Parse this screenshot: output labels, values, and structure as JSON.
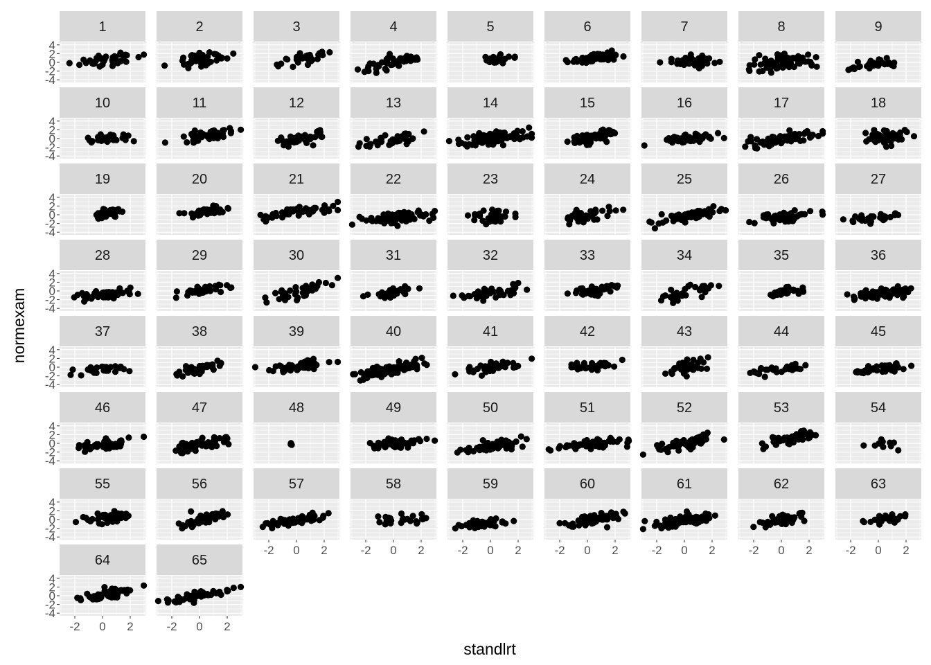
{
  "chart_data": {
    "type": "scatter",
    "facet_by": "school",
    "facet_layout": {
      "columns": 9,
      "rows": 8
    },
    "xlabel": "standlrt",
    "ylabel": "normexam",
    "xlim": [
      -3.1,
      3.1
    ],
    "ylim": [
      -4.6,
      4.6
    ],
    "x_ticks": [
      -2,
      0,
      2
    ],
    "x_tick_labels": [
      "-2",
      "0",
      "2"
    ],
    "y_ticks": [
      -4,
      -2,
      0,
      2,
      4
    ],
    "y_tick_labels": [
      "-4",
      "-2",
      "0",
      "2",
      "4"
    ],
    "grid": true,
    "colors": {
      "panel_bg": "#ebebeb",
      "strip_bg": "#d9d9d9",
      "grid": "#ffffff",
      "point": "#000000",
      "tick": "#333333"
    },
    "panels": [
      {
        "label": "1",
        "n": 45,
        "x_center": 0.4,
        "x_spread": 1.1,
        "slope": 0.55,
        "intercept": 0.3,
        "noise": 0.7
      },
      {
        "label": "2",
        "n": 45,
        "x_center": 0.4,
        "x_spread": 1.1,
        "slope": 0.55,
        "intercept": 0.6,
        "noise": 0.75
      },
      {
        "label": "3",
        "n": 30,
        "x_center": 0.6,
        "x_spread": 0.9,
        "slope": 0.55,
        "intercept": 0.5,
        "noise": 0.7
      },
      {
        "label": "4",
        "n": 50,
        "x_center": 0.2,
        "x_spread": 1.1,
        "slope": 0.6,
        "intercept": 0.2,
        "noise": 0.7
      },
      {
        "label": "5",
        "n": 30,
        "x_center": 0.6,
        "x_spread": 0.6,
        "slope": 0.4,
        "intercept": 0.4,
        "noise": 0.4
      },
      {
        "label": "6",
        "n": 60,
        "x_center": 0.5,
        "x_spread": 0.9,
        "slope": 0.4,
        "intercept": 0.7,
        "noise": 0.5
      },
      {
        "label": "7",
        "n": 40,
        "x_center": 0.4,
        "x_spread": 1.0,
        "slope": 0.1,
        "intercept": 0.1,
        "noise": 0.75
      },
      {
        "label": "8",
        "n": 80,
        "x_center": 0.1,
        "x_spread": 1.2,
        "slope": 0.35,
        "intercept": 0.0,
        "noise": 0.85
      },
      {
        "label": "9",
        "n": 30,
        "x_center": -0.2,
        "x_spread": 1.1,
        "slope": 0.4,
        "intercept": -0.3,
        "noise": 0.6
      },
      {
        "label": "10",
        "n": 35,
        "x_center": 0.3,
        "x_spread": 0.9,
        "slope": 0.2,
        "intercept": -0.1,
        "noise": 0.55
      },
      {
        "label": "11",
        "n": 50,
        "x_center": 0.7,
        "x_spread": 1.0,
        "slope": 0.45,
        "intercept": 0.5,
        "noise": 0.6
      },
      {
        "label": "12",
        "n": 40,
        "x_center": 0.2,
        "x_spread": 0.9,
        "slope": 0.4,
        "intercept": -0.2,
        "noise": 0.6
      },
      {
        "label": "13",
        "n": 45,
        "x_center": 0.0,
        "x_spread": 1.1,
        "slope": 0.5,
        "intercept": -0.2,
        "noise": 0.65
      },
      {
        "label": "14",
        "n": 100,
        "x_center": 0.3,
        "x_spread": 1.2,
        "slope": 0.45,
        "intercept": 0.0,
        "noise": 0.65
      },
      {
        "label": "15",
        "n": 60,
        "x_center": 0.5,
        "x_spread": 0.8,
        "slope": 0.6,
        "intercept": 0.1,
        "noise": 0.65
      },
      {
        "label": "16",
        "n": 55,
        "x_center": 0.4,
        "x_spread": 1.0,
        "slope": 0.25,
        "intercept": 0.0,
        "noise": 0.55
      },
      {
        "label": "17",
        "n": 80,
        "x_center": 0.0,
        "x_spread": 1.2,
        "slope": 0.5,
        "intercept": -0.2,
        "noise": 0.6
      },
      {
        "label": "18",
        "n": 60,
        "x_center": 0.6,
        "x_spread": 0.7,
        "slope": 0.35,
        "intercept": 0.1,
        "noise": 0.75
      },
      {
        "label": "19",
        "n": 40,
        "x_center": 0.4,
        "x_spread": 0.6,
        "slope": 0.6,
        "intercept": 0.2,
        "noise": 0.6
      },
      {
        "label": "20",
        "n": 35,
        "x_center": 0.8,
        "x_spread": 0.8,
        "slope": 0.3,
        "intercept": 0.7,
        "noise": 0.55
      },
      {
        "label": "21",
        "n": 55,
        "x_center": 0.2,
        "x_spread": 1.3,
        "slope": 0.45,
        "intercept": 0.6,
        "noise": 0.45
      },
      {
        "label": "22",
        "n": 80,
        "x_center": 0.3,
        "x_spread": 1.1,
        "slope": 0.4,
        "intercept": -0.8,
        "noise": 0.55
      },
      {
        "label": "23",
        "n": 35,
        "x_center": 0.0,
        "x_spread": 1.1,
        "slope": 0.3,
        "intercept": -0.5,
        "noise": 0.75
      },
      {
        "label": "24",
        "n": 40,
        "x_center": 0.0,
        "x_spread": 1.0,
        "slope": 0.5,
        "intercept": 0.0,
        "noise": 0.75
      },
      {
        "label": "25",
        "n": 70,
        "x_center": 0.2,
        "x_spread": 1.2,
        "slope": 0.6,
        "intercept": -0.6,
        "noise": 0.6
      },
      {
        "label": "26",
        "n": 45,
        "x_center": 0.0,
        "x_spread": 1.0,
        "slope": 0.55,
        "intercept": -0.5,
        "noise": 0.6
      },
      {
        "label": "27",
        "n": 30,
        "x_center": -0.6,
        "x_spread": 1.2,
        "slope": 0.45,
        "intercept": -0.6,
        "noise": 0.55
      },
      {
        "label": "28",
        "n": 55,
        "x_center": 0.2,
        "x_spread": 1.1,
        "slope": 0.25,
        "intercept": -0.8,
        "noise": 0.5
      },
      {
        "label": "29",
        "n": 40,
        "x_center": 0.2,
        "x_spread": 1.0,
        "slope": 0.35,
        "intercept": 0.0,
        "noise": 0.5
      },
      {
        "label": "30",
        "n": 40,
        "x_center": 0.5,
        "x_spread": 1.2,
        "slope": 0.8,
        "intercept": -0.3,
        "noise": 0.7
      },
      {
        "label": "31",
        "n": 30,
        "x_center": -0.3,
        "x_spread": 0.8,
        "slope": 0.3,
        "intercept": -0.3,
        "noise": 0.55
      },
      {
        "label": "32",
        "n": 40,
        "x_center": 0.1,
        "x_spread": 1.1,
        "slope": 0.55,
        "intercept": -0.6,
        "noise": 0.55
      },
      {
        "label": "33",
        "n": 40,
        "x_center": 0.3,
        "x_spread": 1.1,
        "slope": 0.4,
        "intercept": -0.1,
        "noise": 0.6
      },
      {
        "label": "34",
        "n": 30,
        "x_center": 0.1,
        "x_spread": 1.3,
        "slope": 0.6,
        "intercept": -0.6,
        "noise": 0.8
      },
      {
        "label": "35",
        "n": 40,
        "x_center": 0.4,
        "x_spread": 0.8,
        "slope": 0.25,
        "intercept": -0.3,
        "noise": 0.5
      },
      {
        "label": "36",
        "n": 75,
        "x_center": 0.3,
        "x_spread": 1.1,
        "slope": 0.3,
        "intercept": -0.6,
        "noise": 0.65
      },
      {
        "label": "37",
        "n": 25,
        "x_center": -0.4,
        "x_spread": 1.0,
        "slope": 0.2,
        "intercept": -0.6,
        "noise": 0.5
      },
      {
        "label": "38",
        "n": 45,
        "x_center": 0.1,
        "x_spread": 1.1,
        "slope": 0.55,
        "intercept": -0.5,
        "noise": 0.55
      },
      {
        "label": "39",
        "n": 45,
        "x_center": 0.2,
        "x_spread": 1.1,
        "slope": 0.4,
        "intercept": 0.2,
        "noise": 0.5
      },
      {
        "label": "40",
        "n": 100,
        "x_center": 0.0,
        "x_spread": 1.0,
        "slope": 0.7,
        "intercept": -0.4,
        "noise": 0.65
      },
      {
        "label": "41",
        "n": 45,
        "x_center": 0.0,
        "x_spread": 1.0,
        "slope": 0.45,
        "intercept": -0.1,
        "noise": 0.55
      },
      {
        "label": "42",
        "n": 35,
        "x_center": 0.3,
        "x_spread": 0.9,
        "slope": 0.35,
        "intercept": 0.2,
        "noise": 0.5
      },
      {
        "label": "43",
        "n": 45,
        "x_center": 0.3,
        "x_spread": 0.8,
        "slope": 0.6,
        "intercept": -0.1,
        "noise": 0.8
      },
      {
        "label": "44",
        "n": 30,
        "x_center": -0.2,
        "x_spread": 1.1,
        "slope": 0.35,
        "intercept": -0.5,
        "noise": 0.5
      },
      {
        "label": "45",
        "n": 45,
        "x_center": 0.1,
        "x_spread": 1.0,
        "slope": 0.4,
        "intercept": -0.4,
        "noise": 0.5
      },
      {
        "label": "46",
        "n": 45,
        "x_center": 0.0,
        "x_spread": 1.1,
        "slope": 0.4,
        "intercept": -0.4,
        "noise": 0.55
      },
      {
        "label": "47",
        "n": 55,
        "x_center": 0.0,
        "x_spread": 1.1,
        "slope": 0.65,
        "intercept": -0.3,
        "noise": 0.65
      },
      {
        "label": "48",
        "n": 4,
        "x_center": -0.4,
        "x_spread": 0.05,
        "slope": 0.0,
        "intercept": 0.0,
        "noise": 0.2
      },
      {
        "label": "49",
        "n": 55,
        "x_center": 0.2,
        "x_spread": 1.1,
        "slope": 0.35,
        "intercept": -0.1,
        "noise": 0.55
      },
      {
        "label": "50",
        "n": 55,
        "x_center": 0.2,
        "x_spread": 1.0,
        "slope": 0.5,
        "intercept": -0.6,
        "noise": 0.6
      },
      {
        "label": "51",
        "n": 55,
        "x_center": 0.2,
        "x_spread": 1.2,
        "slope": 0.3,
        "intercept": -0.4,
        "noise": 0.5
      },
      {
        "label": "52",
        "n": 55,
        "x_center": 0.2,
        "x_spread": 1.1,
        "slope": 0.6,
        "intercept": 0.0,
        "noise": 0.6
      },
      {
        "label": "53",
        "n": 55,
        "x_center": 0.7,
        "x_spread": 1.0,
        "slope": 0.75,
        "intercept": 0.6,
        "noise": 0.6
      },
      {
        "label": "54",
        "n": 10,
        "x_center": 0.3,
        "x_spread": 0.7,
        "slope": 0.0,
        "intercept": -0.6,
        "noise": 0.55
      },
      {
        "label": "55",
        "n": 55,
        "x_center": 0.5,
        "x_spread": 0.9,
        "slope": 0.5,
        "intercept": 0.3,
        "noise": 0.65
      },
      {
        "label": "56",
        "n": 45,
        "x_center": 0.3,
        "x_spread": 0.9,
        "slope": 0.6,
        "intercept": -0.1,
        "noise": 0.7
      },
      {
        "label": "57",
        "n": 60,
        "x_center": 0.0,
        "x_spread": 1.1,
        "slope": 0.45,
        "intercept": -0.2,
        "noise": 0.5
      },
      {
        "label": "58",
        "n": 25,
        "x_center": 0.2,
        "x_spread": 1.0,
        "slope": 0.2,
        "intercept": -0.1,
        "noise": 0.55
      },
      {
        "label": "59",
        "n": 45,
        "x_center": -0.3,
        "x_spread": 1.0,
        "slope": 0.3,
        "intercept": -0.8,
        "noise": 0.5
      },
      {
        "label": "60",
        "n": 55,
        "x_center": 0.3,
        "x_spread": 1.0,
        "slope": 0.5,
        "intercept": -0.3,
        "noise": 0.6
      },
      {
        "label": "61",
        "n": 70,
        "x_center": 0.1,
        "x_spread": 1.2,
        "slope": 0.45,
        "intercept": -0.3,
        "noise": 0.7
      },
      {
        "label": "62",
        "n": 50,
        "x_center": 0.3,
        "x_spread": 1.0,
        "slope": 0.5,
        "intercept": -0.1,
        "noise": 0.6
      },
      {
        "label": "63",
        "n": 30,
        "x_center": 0.3,
        "x_spread": 0.8,
        "slope": 0.25,
        "intercept": 0.0,
        "noise": 0.5
      },
      {
        "label": "64",
        "n": 50,
        "x_center": 0.4,
        "x_spread": 1.2,
        "slope": 0.55,
        "intercept": 0.1,
        "noise": 0.55
      },
      {
        "label": "65",
        "n": 55,
        "x_center": -0.2,
        "x_spread": 1.1,
        "slope": 0.55,
        "intercept": 0.0,
        "noise": 0.5
      }
    ]
  }
}
